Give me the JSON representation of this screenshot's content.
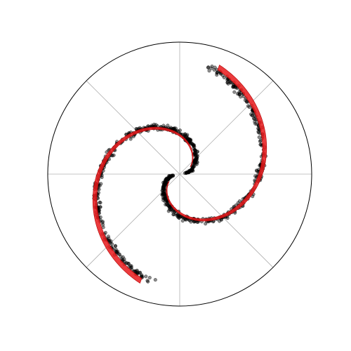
{
  "chart_data": {
    "type": "scatter",
    "projection": "polar",
    "rlim": [
      0,
      1
    ],
    "radial_gridlines": [
      0
    ],
    "angular_gridlines_deg": [
      0,
      45,
      90,
      135,
      180,
      225,
      270,
      315
    ],
    "grid": true,
    "legend": "none",
    "tick_labels_visible": false,
    "series": [
      {
        "kind": "scatter",
        "color": "#000000",
        "alpha": 0.45,
        "arms": [
          {
            "theta_deg_start": 10,
            "theta_deg_end": 255,
            "r_start": 0.06,
            "r_end": 0.84,
            "spread": 0.035,
            "count": 420
          },
          {
            "theta_deg_start": 190,
            "theta_deg_end": 435,
            "r_start": 0.06,
            "r_end": 0.84,
            "spread": 0.035,
            "count": 420
          }
        ]
      },
      {
        "kind": "band",
        "color": "#e8191b",
        "alpha": 0.85,
        "arms": [
          {
            "theta_deg_start": 35,
            "theta_deg_end": 250,
            "r_start": 0.1,
            "r_end": 0.86,
            "width_start": 0.008,
            "width_end": 0.04
          },
          {
            "theta_deg_start": 215,
            "theta_deg_end": 430,
            "r_start": 0.1,
            "r_end": 0.86,
            "width_start": 0.008,
            "width_end": 0.04
          }
        ]
      }
    ]
  }
}
